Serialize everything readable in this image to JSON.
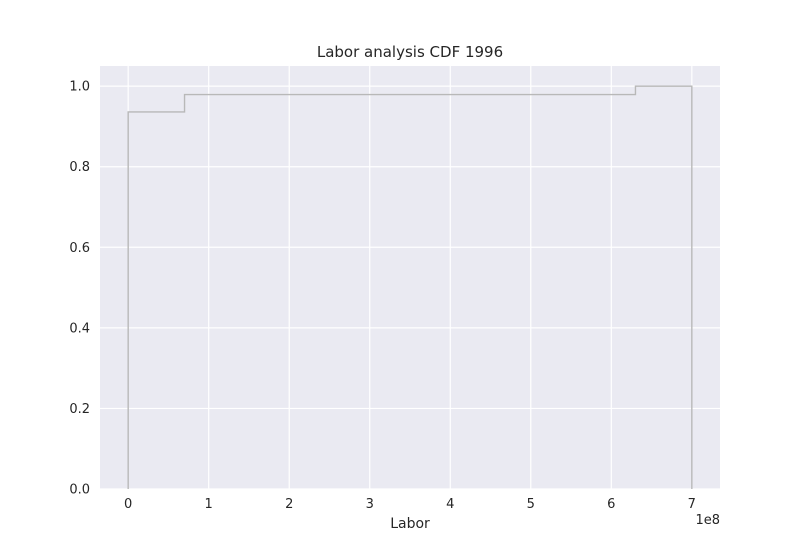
{
  "chart_data": {
    "type": "line",
    "title": "Labor analysis CDF 1996",
    "xlabel": "Labor",
    "ylabel": "",
    "x_offset_label": "1e8",
    "xlim": [
      -0.35,
      7.35
    ],
    "ylim": [
      0.0,
      1.05
    ],
    "xticks": [
      0,
      1,
      2,
      3,
      4,
      5,
      6,
      7
    ],
    "xtick_labels": [
      "0",
      "1",
      "2",
      "3",
      "4",
      "5",
      "6",
      "7"
    ],
    "yticks": [
      0.0,
      0.2,
      0.4,
      0.6,
      0.8,
      1.0
    ],
    "ytick_labels": [
      "0.0",
      "0.2",
      "0.4",
      "0.6",
      "0.8",
      "1.0"
    ],
    "grid": true,
    "series": [
      {
        "step": "post",
        "color": "#b8b8b8",
        "x": [
          0,
          0,
          0.7,
          6.3,
          7.0,
          7.0
        ],
        "y": [
          0.0,
          0.936,
          0.979,
          1.0,
          1.0,
          0.0
        ]
      }
    ],
    "colors": {
      "background": "#eaeaf2",
      "grid": "#ffffff",
      "line": "#b8b8b8"
    }
  }
}
